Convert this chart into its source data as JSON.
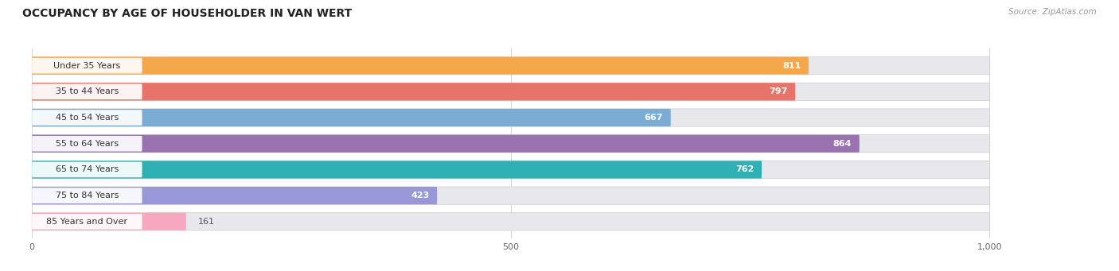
{
  "title": "OCCUPANCY BY AGE OF HOUSEHOLDER IN VAN WERT",
  "source": "Source: ZipAtlas.com",
  "categories": [
    "Under 35 Years",
    "35 to 44 Years",
    "45 to 54 Years",
    "55 to 64 Years",
    "65 to 74 Years",
    "75 to 84 Years",
    "85 Years and Over"
  ],
  "values": [
    811,
    797,
    667,
    864,
    762,
    423,
    161
  ],
  "bar_colors": [
    "#F5A84B",
    "#E8736A",
    "#7BACD4",
    "#9B72B0",
    "#2FB0B5",
    "#9898D8",
    "#F5A8C0"
  ],
  "xlim_min": -10,
  "xlim_max": 1100,
  "data_max": 1000,
  "xticks": [
    0,
    500,
    1000
  ],
  "xticklabels": [
    "0",
    "500",
    "1,000"
  ],
  "title_fontsize": 10,
  "label_fontsize": 8,
  "value_fontsize": 8,
  "background_color": "#ffffff",
  "track_color": "#e8e8ec",
  "label_bg_color": "#ffffff"
}
